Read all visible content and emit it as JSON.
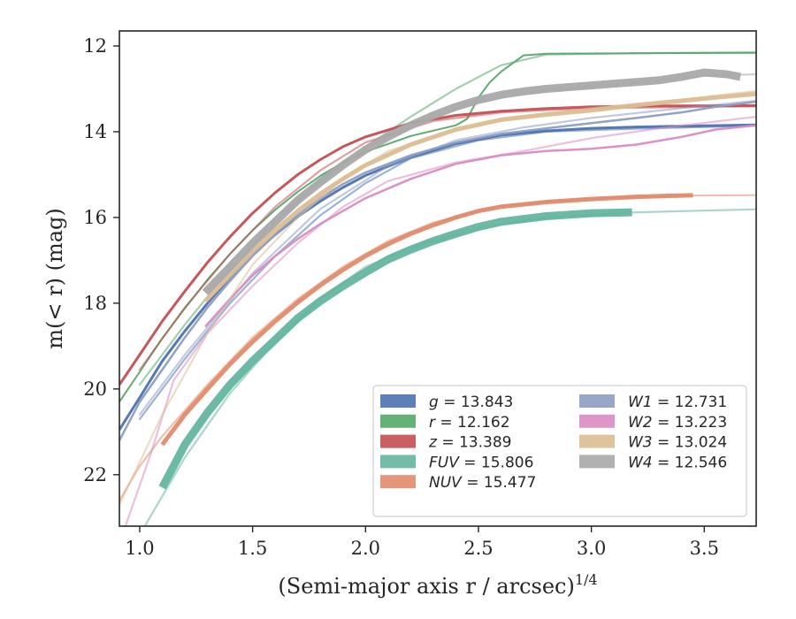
{
  "chart_data": {
    "type": "line",
    "title": "",
    "xlabel": "(Semi-major axis r / arcsec)",
    "xlabel_exponent": "1/4",
    "ylabel": "m(< r) (mag)",
    "xlim": [
      0.91,
      3.73
    ],
    "ylim": [
      23.2,
      11.65
    ],
    "y_inverted": true,
    "grid": false,
    "legend_position": "lower-right",
    "x_ticks": [
      "1.0",
      "1.5",
      "2.0",
      "2.5",
      "3.0",
      "3.5"
    ],
    "y_ticks": [
      "12",
      "14",
      "16",
      "18",
      "20",
      "22"
    ],
    "series": [
      {
        "key": "g",
        "name": "g = 13.843",
        "band": "g",
        "value": "13.843",
        "color": "#4c72b0",
        "points": [
          [
            0.91,
            20.95
          ],
          [
            1.0,
            20.2
          ],
          [
            1.1,
            19.35
          ],
          [
            1.2,
            18.65
          ],
          [
            1.3,
            18.0
          ],
          [
            1.4,
            17.4
          ],
          [
            1.5,
            16.85
          ],
          [
            1.6,
            16.4
          ],
          [
            1.7,
            15.98
          ],
          [
            1.8,
            15.62
          ],
          [
            1.9,
            15.3
          ],
          [
            2.0,
            15.02
          ],
          [
            2.2,
            14.6
          ],
          [
            2.4,
            14.28
          ],
          [
            2.6,
            14.08
          ],
          [
            2.8,
            13.98
          ],
          [
            3.0,
            13.92
          ],
          [
            3.2,
            13.89
          ],
          [
            3.5,
            13.86
          ],
          [
            3.73,
            13.84
          ]
        ],
        "ext": [
          [
            1.0,
            20.7
          ],
          [
            1.2,
            19.3
          ],
          [
            1.4,
            18.0
          ],
          [
            1.6,
            16.9
          ],
          [
            1.8,
            15.95
          ],
          [
            2.0,
            15.2
          ],
          [
            2.2,
            14.62
          ],
          [
            2.5,
            14.2
          ],
          [
            2.8,
            14.0
          ],
          [
            3.2,
            13.93
          ],
          [
            3.73,
            13.86
          ]
        ]
      },
      {
        "key": "r",
        "name": "r = 12.162",
        "band": "r",
        "value": "12.162",
        "color": "#55a868",
        "points": [
          [
            0.91,
            20.3
          ],
          [
            1.0,
            19.6
          ],
          [
            1.1,
            18.82
          ],
          [
            1.2,
            18.12
          ],
          [
            1.3,
            17.45
          ],
          [
            1.4,
            16.85
          ],
          [
            1.5,
            16.3
          ],
          [
            1.6,
            15.82
          ],
          [
            1.7,
            15.4
          ],
          [
            1.8,
            15.03
          ],
          [
            1.9,
            14.72
          ],
          [
            2.0,
            14.47
          ],
          [
            2.2,
            14.1
          ],
          [
            2.4,
            13.85
          ],
          [
            2.45,
            13.7
          ],
          [
            2.5,
            13.2
          ],
          [
            2.55,
            12.85
          ],
          [
            2.6,
            12.6
          ],
          [
            2.7,
            12.22
          ],
          [
            2.8,
            12.18
          ],
          [
            3.2,
            12.17
          ],
          [
            3.73,
            12.16
          ]
        ],
        "ext": [
          [
            1.0,
            19.9
          ],
          [
            1.2,
            18.5
          ],
          [
            1.4,
            17.2
          ],
          [
            1.6,
            16.1
          ],
          [
            1.8,
            15.15
          ],
          [
            2.0,
            14.35
          ],
          [
            2.2,
            13.65
          ],
          [
            2.4,
            13.0
          ],
          [
            2.6,
            12.45
          ],
          [
            2.8,
            12.2
          ],
          [
            3.2,
            12.17
          ],
          [
            3.73,
            12.15
          ]
        ]
      },
      {
        "key": "z",
        "name": "z = 13.389",
        "band": "z",
        "value": "13.389",
        "color": "#c44e52",
        "points": [
          [
            0.91,
            19.9
          ],
          [
            1.0,
            19.2
          ],
          [
            1.1,
            18.42
          ],
          [
            1.2,
            17.72
          ],
          [
            1.3,
            17.05
          ],
          [
            1.4,
            16.45
          ],
          [
            1.5,
            15.9
          ],
          [
            1.6,
            15.42
          ],
          [
            1.7,
            15.0
          ],
          [
            1.8,
            14.65
          ],
          [
            1.9,
            14.35
          ],
          [
            2.0,
            14.12
          ],
          [
            2.2,
            13.8
          ],
          [
            2.4,
            13.62
          ],
          [
            2.6,
            13.52
          ],
          [
            2.8,
            13.46
          ],
          [
            3.0,
            13.42
          ],
          [
            3.3,
            13.4
          ],
          [
            3.73,
            13.39
          ]
        ],
        "ext": [
          [
            1.0,
            19.55
          ],
          [
            1.2,
            18.1
          ],
          [
            1.4,
            16.85
          ],
          [
            1.6,
            15.75
          ],
          [
            1.8,
            14.9
          ],
          [
            2.0,
            14.25
          ],
          [
            2.3,
            13.75
          ],
          [
            2.6,
            13.55
          ],
          [
            3.0,
            13.45
          ],
          [
            3.73,
            13.41
          ]
        ]
      },
      {
        "key": "FUV",
        "name": "FUV = 15.806",
        "band": "FUV",
        "value": "15.806",
        "color": "#64b5a0",
        "points": [
          [
            1.1,
            22.3
          ],
          [
            1.2,
            21.3
          ],
          [
            1.3,
            20.55
          ],
          [
            1.4,
            19.9
          ],
          [
            1.5,
            19.35
          ],
          [
            1.6,
            18.85
          ],
          [
            1.7,
            18.35
          ],
          [
            1.8,
            17.95
          ],
          [
            1.9,
            17.6
          ],
          [
            2.0,
            17.28
          ],
          [
            2.1,
            16.98
          ],
          [
            2.2,
            16.75
          ],
          [
            2.3,
            16.55
          ],
          [
            2.4,
            16.38
          ],
          [
            2.5,
            16.22
          ],
          [
            2.6,
            16.1
          ],
          [
            2.8,
            15.97
          ],
          [
            3.0,
            15.9
          ],
          [
            3.18,
            15.88
          ]
        ],
        "ext": [
          [
            0.91,
            24.5
          ],
          [
            1.0,
            23.4
          ],
          [
            1.1,
            22.5
          ],
          [
            1.2,
            21.6
          ],
          [
            1.4,
            20.1
          ],
          [
            1.6,
            18.9
          ],
          [
            1.8,
            17.9
          ],
          [
            2.0,
            17.15
          ],
          [
            2.2,
            16.7
          ],
          [
            2.5,
            16.25
          ],
          [
            2.8,
            16.0
          ],
          [
            3.2,
            15.88
          ],
          [
            3.73,
            15.81
          ]
        ]
      },
      {
        "key": "NUV",
        "name": "NUV = 15.477",
        "band": "NUV",
        "value": "15.477",
        "color": "#e08b6a",
        "points": [
          [
            1.1,
            21.3
          ],
          [
            1.2,
            20.6
          ],
          [
            1.3,
            20.0
          ],
          [
            1.4,
            19.42
          ],
          [
            1.5,
            18.9
          ],
          [
            1.6,
            18.42
          ],
          [
            1.7,
            17.98
          ],
          [
            1.8,
            17.58
          ],
          [
            1.9,
            17.22
          ],
          [
            2.0,
            16.9
          ],
          [
            2.1,
            16.62
          ],
          [
            2.2,
            16.38
          ],
          [
            2.3,
            16.18
          ],
          [
            2.4,
            16.0
          ],
          [
            2.5,
            15.85
          ],
          [
            2.6,
            15.75
          ],
          [
            2.8,
            15.64
          ],
          [
            3.0,
            15.57
          ],
          [
            3.2,
            15.52
          ],
          [
            3.45,
            15.48
          ]
        ],
        "ext": [
          [
            0.91,
            22.6
          ],
          [
            1.0,
            21.8
          ],
          [
            1.1,
            21.1
          ],
          [
            1.3,
            19.9
          ],
          [
            1.5,
            18.8
          ],
          [
            1.7,
            17.9
          ],
          [
            1.9,
            17.15
          ],
          [
            2.1,
            16.55
          ],
          [
            2.3,
            16.12
          ],
          [
            2.6,
            15.72
          ],
          [
            3.0,
            15.55
          ],
          [
            3.4,
            15.49
          ],
          [
            3.73,
            15.48
          ]
        ]
      },
      {
        "key": "W1",
        "name": "W1 = 12.731",
        "band": "W1",
        "value": "12.731",
        "color": "#8c9dc4",
        "points": [
          [
            0.91,
            21.2
          ],
          [
            1.0,
            20.3
          ],
          [
            1.1,
            19.55
          ],
          [
            1.2,
            18.8
          ],
          [
            1.3,
            18.1
          ],
          [
            1.4,
            17.48
          ],
          [
            1.5,
            16.9
          ],
          [
            1.6,
            16.4
          ],
          [
            1.7,
            15.95
          ],
          [
            1.8,
            15.55
          ],
          [
            1.9,
            15.22
          ],
          [
            2.0,
            14.95
          ],
          [
            2.2,
            14.55
          ],
          [
            2.4,
            14.25
          ],
          [
            2.6,
            14.05
          ],
          [
            2.8,
            13.92
          ],
          [
            3.0,
            13.8
          ],
          [
            3.2,
            13.68
          ],
          [
            3.4,
            13.55
          ],
          [
            3.55,
            13.42
          ],
          [
            3.73,
            13.3
          ]
        ],
        "ext": [
          [
            1.0,
            20.6
          ],
          [
            1.2,
            19.2
          ],
          [
            1.5,
            17.3
          ],
          [
            1.8,
            15.8
          ],
          [
            2.1,
            14.8
          ],
          [
            2.4,
            14.2
          ],
          [
            2.7,
            13.9
          ],
          [
            3.0,
            13.68
          ],
          [
            3.4,
            13.45
          ],
          [
            3.73,
            13.28
          ]
        ]
      },
      {
        "key": "W2",
        "name": "W2 = 13.223",
        "band": "W2",
        "value": "13.223",
        "color": "#da8bc3",
        "points": [
          [
            1.29,
            18.55
          ],
          [
            1.4,
            17.9
          ],
          [
            1.5,
            17.35
          ],
          [
            1.6,
            16.9
          ],
          [
            1.7,
            16.5
          ],
          [
            1.8,
            16.15
          ],
          [
            1.9,
            15.85
          ],
          [
            2.0,
            15.55
          ],
          [
            2.2,
            15.1
          ],
          [
            2.4,
            14.75
          ],
          [
            2.6,
            14.55
          ],
          [
            2.8,
            14.45
          ],
          [
            3.0,
            14.4
          ],
          [
            3.2,
            14.3
          ],
          [
            3.4,
            14.12
          ],
          [
            3.55,
            13.95
          ],
          [
            3.73,
            13.85
          ]
        ],
        "ext": [
          [
            0.91,
            23.6
          ],
          [
            1.05,
            21.5
          ],
          [
            1.15,
            19.8
          ],
          [
            1.3,
            18.7
          ],
          [
            1.5,
            17.6
          ],
          [
            1.7,
            16.6
          ],
          [
            1.9,
            15.75
          ],
          [
            2.1,
            15.15
          ],
          [
            2.4,
            14.72
          ],
          [
            2.7,
            14.45
          ],
          [
            3.0,
            14.15
          ],
          [
            3.3,
            13.92
          ],
          [
            3.73,
            13.65
          ]
        ]
      },
      {
        "key": "W3",
        "name": "W3 = 13.024",
        "band": "W3",
        "value": "13.024",
        "color": "#dcbd92",
        "points": [
          [
            1.29,
            17.95
          ],
          [
            1.4,
            17.35
          ],
          [
            1.5,
            16.8
          ],
          [
            1.6,
            16.3
          ],
          [
            1.7,
            15.85
          ],
          [
            1.8,
            15.45
          ],
          [
            1.9,
            15.1
          ],
          [
            2.0,
            14.78
          ],
          [
            2.2,
            14.3
          ],
          [
            2.4,
            13.95
          ],
          [
            2.6,
            13.72
          ],
          [
            2.8,
            13.6
          ],
          [
            3.0,
            13.5
          ],
          [
            3.2,
            13.38
          ],
          [
            3.4,
            13.28
          ],
          [
            3.55,
            13.2
          ],
          [
            3.73,
            13.12
          ]
        ],
        "ext": [
          [
            0.91,
            22.7
          ],
          [
            1.1,
            20.6
          ],
          [
            1.3,
            18.7
          ],
          [
            1.5,
            17.1
          ],
          [
            1.7,
            16.0
          ],
          [
            1.9,
            15.1
          ],
          [
            2.1,
            14.45
          ],
          [
            2.4,
            13.95
          ],
          [
            2.7,
            13.65
          ],
          [
            3.0,
            13.45
          ],
          [
            3.4,
            13.25
          ],
          [
            3.73,
            13.05
          ]
        ]
      },
      {
        "key": "W4",
        "name": "W4 = 12.546",
        "band": "W4",
        "value": "12.546",
        "color": "#a9a9a9",
        "points": [
          [
            1.29,
            17.75
          ],
          [
            1.4,
            17.15
          ],
          [
            1.5,
            16.6
          ],
          [
            1.6,
            16.1
          ],
          [
            1.7,
            15.6
          ],
          [
            1.8,
            15.18
          ],
          [
            1.9,
            14.78
          ],
          [
            2.0,
            14.42
          ],
          [
            2.1,
            14.12
          ],
          [
            2.2,
            13.85
          ],
          [
            2.3,
            13.62
          ],
          [
            2.4,
            13.42
          ],
          [
            2.5,
            13.26
          ],
          [
            2.6,
            13.14
          ],
          [
            2.7,
            13.06
          ],
          [
            2.8,
            13.0
          ],
          [
            2.9,
            12.96
          ],
          [
            3.0,
            12.92
          ],
          [
            3.1,
            12.88
          ],
          [
            3.2,
            12.84
          ],
          [
            3.3,
            12.8
          ],
          [
            3.4,
            12.72
          ],
          [
            3.5,
            12.62
          ],
          [
            3.6,
            12.66
          ],
          [
            3.66,
            12.72
          ]
        ],
        "ext": [
          [
            1.3,
            17.7
          ],
          [
            1.5,
            16.5
          ],
          [
            1.7,
            15.5
          ],
          [
            1.9,
            14.7
          ],
          [
            2.1,
            14.1
          ],
          [
            2.3,
            13.65
          ],
          [
            2.5,
            13.3
          ],
          [
            2.7,
            13.1
          ],
          [
            3.0,
            12.95
          ],
          [
            3.3,
            12.8
          ],
          [
            3.5,
            12.7
          ],
          [
            3.73,
            12.66
          ]
        ]
      }
    ]
  }
}
